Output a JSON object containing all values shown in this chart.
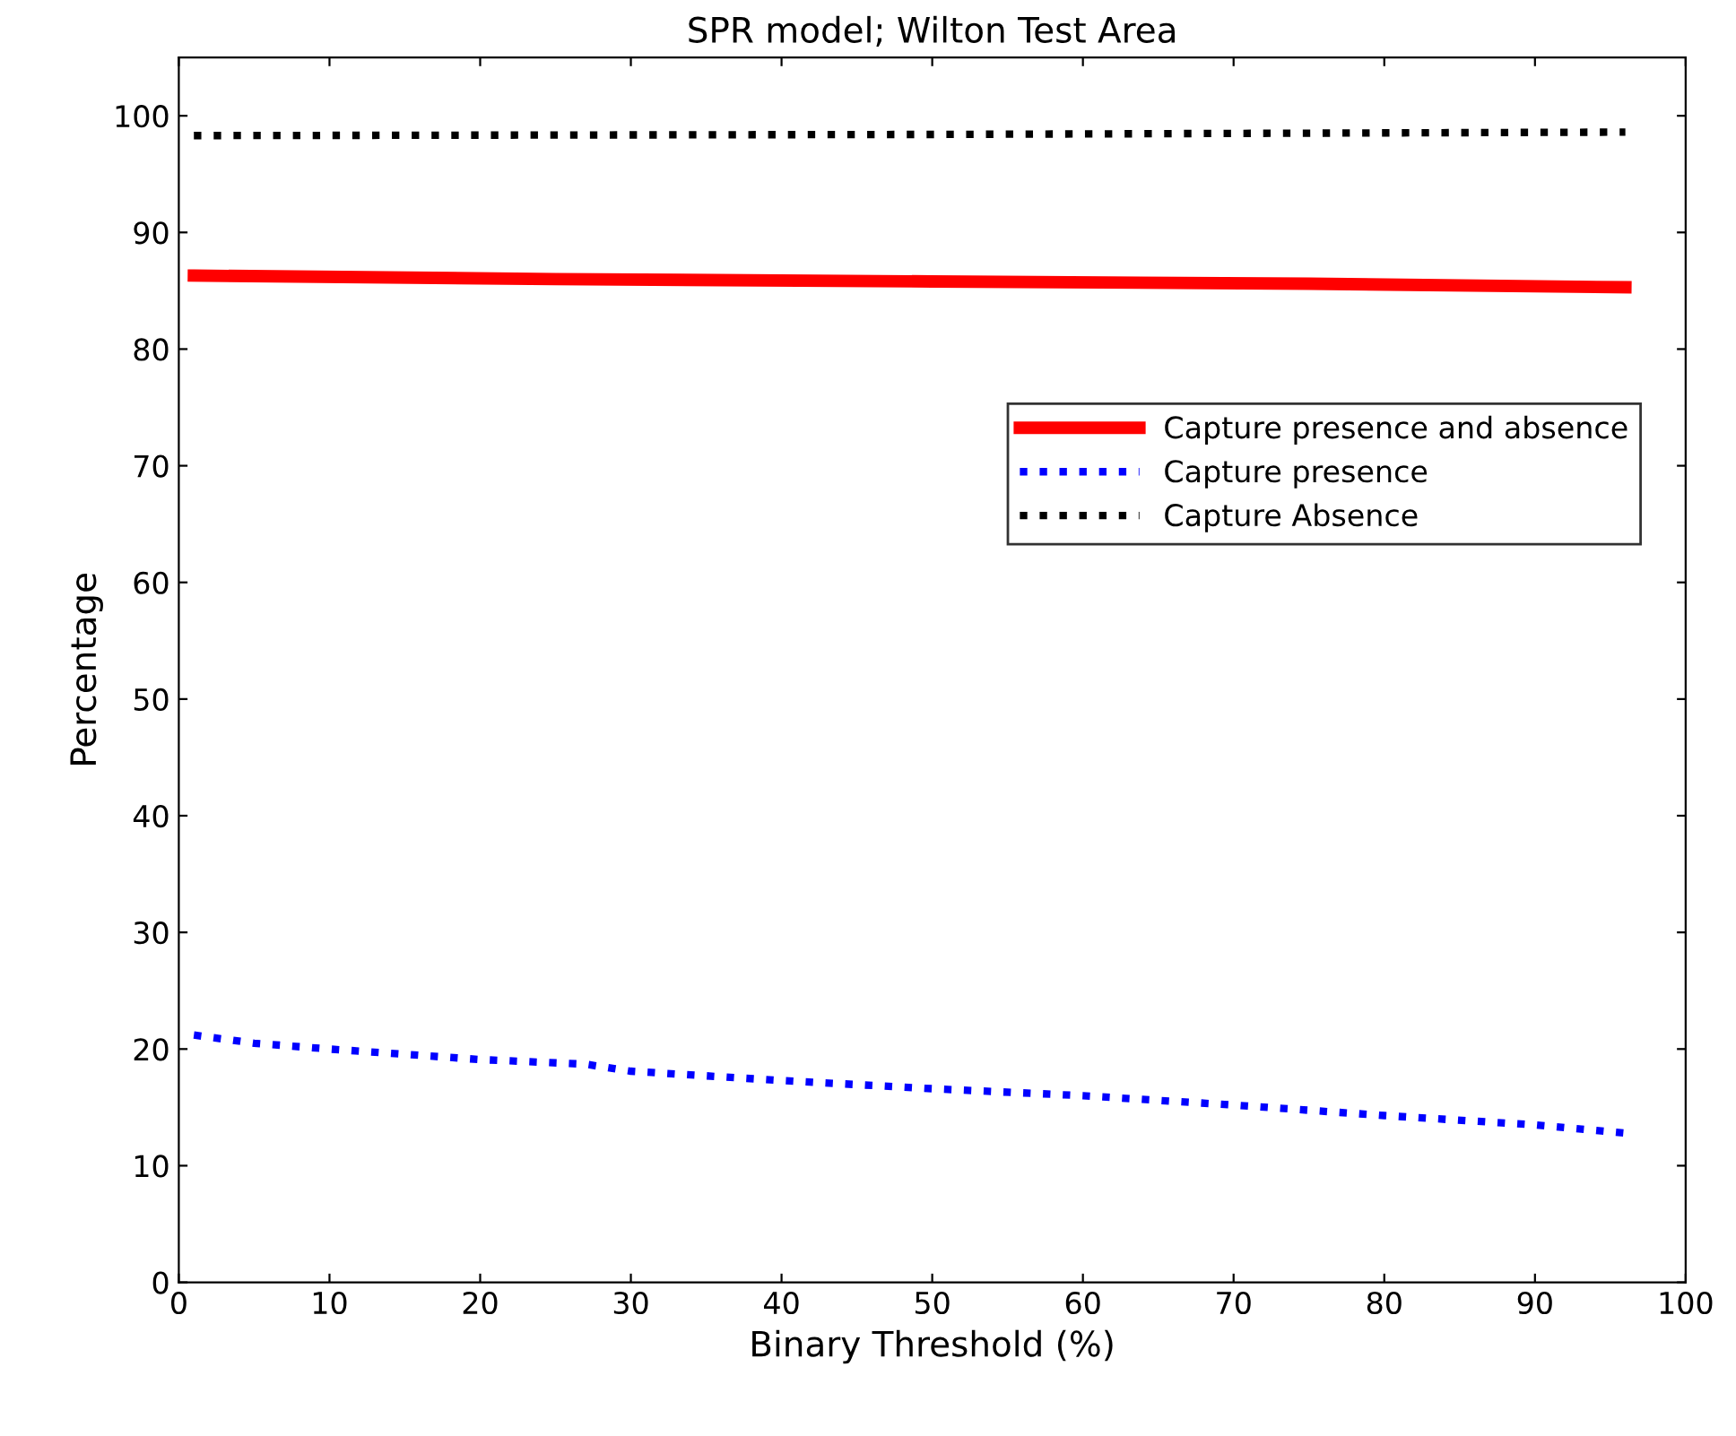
{
  "chart_data": {
    "type": "line",
    "title": "SPR model; Wilton Test Area",
    "xlabel": "Binary Threshold (%)",
    "ylabel": "Percentage",
    "series": [
      {
        "name": "Capture presence and absence",
        "color": "#ff0000",
        "line_style": "solid",
        "x": [
          1,
          25,
          50,
          75,
          96
        ],
        "values": [
          86.3,
          86.0,
          85.8,
          85.6,
          85.3
        ]
      },
      {
        "name": "Capture presence",
        "color": "#0000ff",
        "line_style": "dotted",
        "x": [
          1,
          5,
          10,
          20,
          27,
          30,
          40,
          50,
          60,
          70,
          80,
          90,
          96
        ],
        "values": [
          21.2,
          20.5,
          20.0,
          19.1,
          18.7,
          18.1,
          17.3,
          16.6,
          16.0,
          15.2,
          14.3,
          13.5,
          12.8
        ]
      },
      {
        "name": "Capture Absence",
        "color": "#000000",
        "line_style": "dotted",
        "x": [
          1,
          50,
          96
        ],
        "values": [
          98.3,
          98.4,
          98.6
        ]
      }
    ],
    "xlim": [
      0,
      100
    ],
    "xticks": [
      0,
      10,
      20,
      30,
      40,
      50,
      60,
      70,
      80,
      90,
      100
    ],
    "ylim": [
      0,
      105
    ],
    "yticks": [
      0,
      10,
      20,
      30,
      40,
      50,
      60,
      70,
      80,
      90,
      100
    ],
    "grid": false,
    "legend": "right"
  }
}
